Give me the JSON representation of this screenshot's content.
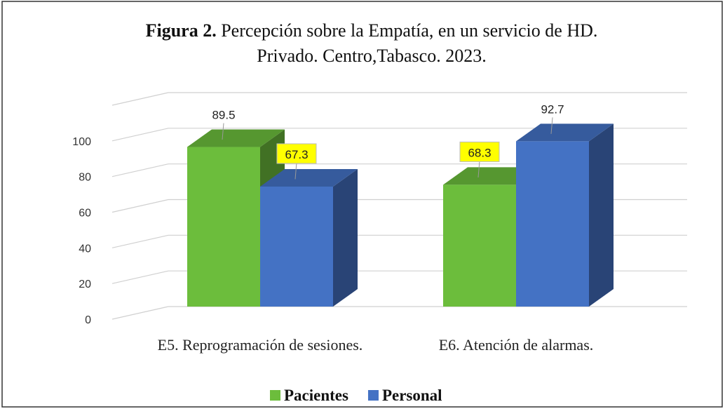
{
  "chart_data": {
    "type": "bar3d",
    "title": {
      "label": "Figura 2.",
      "lines": [
        "Percepción sobre la Empatía,  en un servicio  de HD.",
        "Privado.  Centro,Tabasco. 2023."
      ]
    },
    "categories": [
      "E5. Reprogramación de sesiones.",
      "E6. Atención de alarmas."
    ],
    "series": [
      {
        "name": "Pacientes",
        "color": "#6cbd3c",
        "values": [
          89.5,
          68.3
        ],
        "label_backgrounds": [
          null,
          "#ffff00"
        ]
      },
      {
        "name": "Personal",
        "color": "#4472c4",
        "values": [
          67.3,
          92.7
        ],
        "label_backgrounds": [
          "#ffff00",
          null
        ]
      }
    ],
    "ylim": [
      0,
      120
    ],
    "yticks": [
      0,
      20,
      40,
      60,
      80,
      100
    ],
    "grid": true,
    "legend": "bottom"
  }
}
